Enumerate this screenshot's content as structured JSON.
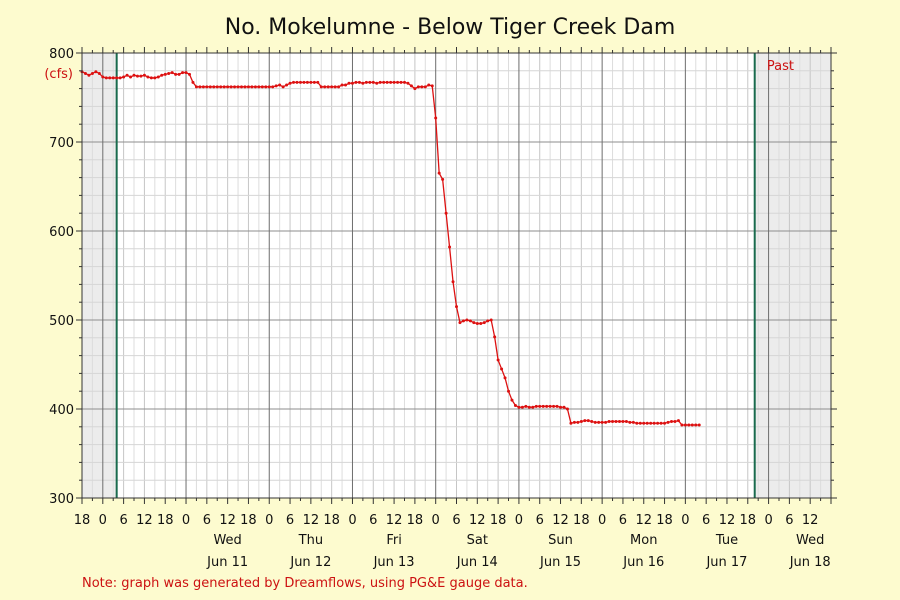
{
  "chart_data": {
    "type": "line",
    "title": "No. Mokelumne - Below Tiger Creek Dam",
    "units_label": "(cfs)",
    "ylim": [
      300,
      800
    ],
    "y_ticks": [
      300,
      400,
      500,
      600,
      700,
      800
    ],
    "x_range_hours": [
      -30,
      186
    ],
    "hour_tick_labels": [
      "18",
      "0",
      "6",
      "12",
      "18",
      "0",
      "6",
      "12",
      "18",
      "0",
      "6",
      "12",
      "18",
      "0",
      "6",
      "12",
      "18",
      "0",
      "6",
      "12",
      "18",
      "0",
      "6",
      "12",
      "18",
      "0",
      "6",
      "12",
      "18",
      "0",
      "6",
      "12",
      "18",
      "0",
      "6",
      "12"
    ],
    "days": [
      {
        "weekday": "Wed",
        "date": "Jun 11"
      },
      {
        "weekday": "Thu",
        "date": "Jun 12"
      },
      {
        "weekday": "Fri",
        "date": "Jun 13"
      },
      {
        "weekday": "Sat",
        "date": "Jun 14"
      },
      {
        "weekday": "Sun",
        "date": "Jun 15"
      },
      {
        "weekday": "Mon",
        "date": "Jun 16"
      },
      {
        "weekday": "Tue",
        "date": "Jun 17"
      },
      {
        "weekday": "Wed",
        "date": "Jun 18"
      }
    ],
    "past_label": "Past",
    "data_window_hours": [
      -20,
      164
    ],
    "grid": true,
    "series": [
      {
        "color": "#dd1111",
        "points": [
          [
            -30,
            779
          ],
          [
            -29,
            777
          ],
          [
            -28,
            775
          ],
          [
            -27,
            777
          ],
          [
            -26,
            779
          ],
          [
            -25,
            777
          ],
          [
            -24,
            773
          ],
          [
            -23,
            772
          ],
          [
            -22,
            772
          ],
          [
            -21,
            772
          ],
          [
            -20,
            772
          ],
          [
            -19,
            772
          ],
          [
            -18,
            773
          ],
          [
            -17,
            775
          ],
          [
            -16,
            773
          ],
          [
            -15,
            775
          ],
          [
            -14,
            774
          ],
          [
            -13,
            774
          ],
          [
            -12,
            775
          ],
          [
            -11,
            773
          ],
          [
            -10,
            772
          ],
          [
            -9,
            772
          ],
          [
            -8,
            773
          ],
          [
            -7,
            775
          ],
          [
            -6,
            776
          ],
          [
            -5,
            777
          ],
          [
            -4,
            778
          ],
          [
            -3,
            776
          ],
          [
            -2,
            776
          ],
          [
            -1,
            778
          ],
          [
            0,
            778
          ],
          [
            1,
            776
          ],
          [
            2,
            767
          ],
          [
            3,
            762
          ],
          [
            4,
            762
          ],
          [
            5,
            762
          ],
          [
            6,
            762
          ],
          [
            7,
            762
          ],
          [
            8,
            762
          ],
          [
            9,
            762
          ],
          [
            10,
            762
          ],
          [
            11,
            762
          ],
          [
            12,
            762
          ],
          [
            13,
            762
          ],
          [
            14,
            762
          ],
          [
            15,
            762
          ],
          [
            16,
            762
          ],
          [
            17,
            762
          ],
          [
            18,
            762
          ],
          [
            19,
            762
          ],
          [
            20,
            762
          ],
          [
            21,
            762
          ],
          [
            22,
            762
          ],
          [
            23,
            762
          ],
          [
            24,
            762
          ],
          [
            25,
            762
          ],
          [
            26,
            763
          ],
          [
            27,
            764
          ],
          [
            28,
            762
          ],
          [
            29,
            764
          ],
          [
            30,
            766
          ],
          [
            31,
            767
          ],
          [
            32,
            767
          ],
          [
            33,
            767
          ],
          [
            34,
            767
          ],
          [
            35,
            767
          ],
          [
            36,
            767
          ],
          [
            37,
            767
          ],
          [
            38,
            767
          ],
          [
            39,
            762
          ],
          [
            40,
            762
          ],
          [
            41,
            762
          ],
          [
            42,
            762
          ],
          [
            43,
            762
          ],
          [
            44,
            762
          ],
          [
            45,
            764
          ],
          [
            46,
            764
          ],
          [
            47,
            766
          ],
          [
            48,
            766
          ],
          [
            49,
            767
          ],
          [
            50,
            767
          ],
          [
            51,
            766
          ],
          [
            52,
            767
          ],
          [
            53,
            767
          ],
          [
            54,
            767
          ],
          [
            55,
            766
          ],
          [
            56,
            767
          ],
          [
            57,
            767
          ],
          [
            58,
            767
          ],
          [
            59,
            767
          ],
          [
            60,
            767
          ],
          [
            61,
            767
          ],
          [
            62,
            767
          ],
          [
            63,
            767
          ],
          [
            64,
            766
          ],
          [
            65,
            763
          ],
          [
            66,
            760
          ],
          [
            67,
            762
          ],
          [
            68,
            762
          ],
          [
            69,
            762
          ],
          [
            70,
            764
          ],
          [
            71,
            763
          ],
          [
            72,
            727
          ],
          [
            73,
            665
          ],
          [
            74,
            658
          ],
          [
            75,
            620
          ],
          [
            76,
            582
          ],
          [
            77,
            543
          ],
          [
            78,
            515
          ],
          [
            79,
            497
          ],
          [
            80,
            499
          ],
          [
            81,
            500
          ],
          [
            82,
            499
          ],
          [
            83,
            497
          ],
          [
            84,
            496
          ],
          [
            85,
            496
          ],
          [
            86,
            497
          ],
          [
            87,
            499
          ],
          [
            88,
            500
          ],
          [
            89,
            481
          ],
          [
            90,
            455
          ],
          [
            91,
            445
          ],
          [
            92,
            435
          ],
          [
            93,
            420
          ],
          [
            94,
            410
          ],
          [
            95,
            404
          ],
          [
            96,
            402
          ],
          [
            97,
            402
          ],
          [
            98,
            403
          ],
          [
            99,
            402
          ],
          [
            100,
            402
          ],
          [
            101,
            403
          ],
          [
            102,
            403
          ],
          [
            103,
            403
          ],
          [
            104,
            403
          ],
          [
            105,
            403
          ],
          [
            106,
            403
          ],
          [
            107,
            403
          ],
          [
            108,
            402
          ],
          [
            109,
            402
          ],
          [
            110,
            400
          ],
          [
            111,
            384
          ],
          [
            112,
            385
          ],
          [
            113,
            385
          ],
          [
            114,
            386
          ],
          [
            115,
            387
          ],
          [
            116,
            387
          ],
          [
            117,
            386
          ],
          [
            118,
            385
          ],
          [
            119,
            385
          ],
          [
            120,
            385
          ],
          [
            121,
            385
          ],
          [
            122,
            386
          ],
          [
            123,
            386
          ],
          [
            124,
            386
          ],
          [
            125,
            386
          ],
          [
            126,
            386
          ],
          [
            127,
            386
          ],
          [
            128,
            385
          ],
          [
            129,
            385
          ],
          [
            130,
            384
          ],
          [
            131,
            384
          ],
          [
            132,
            384
          ],
          [
            133,
            384
          ],
          [
            134,
            384
          ],
          [
            135,
            384
          ],
          [
            136,
            384
          ],
          [
            137,
            384
          ],
          [
            138,
            384
          ],
          [
            139,
            385
          ],
          [
            140,
            386
          ],
          [
            141,
            386
          ],
          [
            142,
            387
          ],
          [
            143,
            382
          ],
          [
            144,
            382
          ],
          [
            145,
            382
          ],
          [
            146,
            382
          ],
          [
            147,
            382
          ],
          [
            148,
            382
          ]
        ]
      }
    ]
  },
  "note": "Note: graph was generated by Dreamflows, using PG&E gauge data."
}
